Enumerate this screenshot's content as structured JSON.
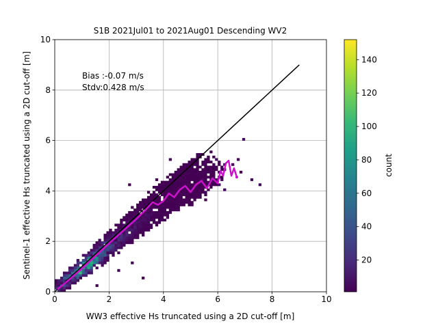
{
  "chart_data": [
    {
      "type": "heatmap",
      "title": "S1B 2021Jul01 to 2021Aug01 Descending WV2",
      "xlabel": "WW3 effective Hs truncated using a 2D cut-off [m]",
      "ylabel": "Sentinel-1 effective Hs truncated using a 2D cut-off [m]",
      "xlim": [
        0,
        10
      ],
      "ylim": [
        0,
        10
      ],
      "xticks": [
        "0",
        "2",
        "4",
        "6",
        "8",
        "10"
      ],
      "yticks": [
        "0",
        "2",
        "4",
        "6",
        "8",
        "10"
      ],
      "grid": true,
      "bin_width": 0.1,
      "annotations": [
        "Bias :-0.07 m/s",
        "Stdv:0.428 m/s"
      ],
      "density_ridge": [
        [
          0.1,
          0.1,
          30
        ],
        [
          0.3,
          0.3,
          50
        ],
        [
          0.5,
          0.5,
          70
        ],
        [
          0.7,
          0.65,
          90
        ],
        [
          0.9,
          0.8,
          115
        ],
        [
          1.1,
          1.0,
          140
        ],
        [
          1.3,
          1.15,
          120
        ],
        [
          1.5,
          1.35,
          90
        ],
        [
          1.7,
          1.55,
          65
        ],
        [
          1.9,
          1.75,
          45
        ],
        [
          2.1,
          1.9,
          35
        ],
        [
          2.3,
          2.1,
          28
        ],
        [
          2.5,
          2.3,
          22
        ],
        [
          2.7,
          2.45,
          18
        ],
        [
          2.9,
          2.65,
          14
        ],
        [
          3.1,
          2.85,
          11
        ],
        [
          3.3,
          3.0,
          8
        ],
        [
          3.5,
          3.15,
          6
        ],
        [
          3.7,
          3.35,
          4
        ],
        [
          3.9,
          3.5,
          3
        ],
        [
          4.1,
          3.7,
          2
        ],
        [
          4.3,
          3.85,
          2
        ],
        [
          4.5,
          4.0,
          1
        ],
        [
          4.7,
          4.15,
          1
        ],
        [
          4.9,
          4.3,
          1
        ],
        [
          5.1,
          4.45,
          1
        ],
        [
          5.3,
          4.6,
          1
        ],
        [
          5.5,
          4.75,
          1
        ]
      ],
      "sparse_bins": [
        [
          5.2,
          5.4
        ],
        [
          5.7,
          5.6
        ],
        [
          5.9,
          5.3
        ],
        [
          6.1,
          4.8
        ],
        [
          6.3,
          5.0
        ],
        [
          6.5,
          5.1
        ],
        [
          6.9,
          6.05
        ],
        [
          7.2,
          4.45
        ],
        [
          7.5,
          4.2
        ],
        [
          6.8,
          4.7
        ],
        [
          6.0,
          4.3
        ],
        [
          5.5,
          3.9
        ],
        [
          6.2,
          4.1
        ],
        [
          4.8,
          5.0
        ],
        [
          4.3,
          5.2
        ],
        [
          3.8,
          4.4
        ],
        [
          3.5,
          2.5
        ],
        [
          2.4,
          0.8
        ],
        [
          1.5,
          0.3
        ],
        [
          2.7,
          4.2
        ],
        [
          5.6,
          3.6
        ],
        [
          5.0,
          3.4
        ],
        [
          4.6,
          3.2
        ],
        [
          3.9,
          2.9
        ],
        [
          3.3,
          0.6
        ],
        [
          2.9,
          1.1
        ],
        [
          6.7,
          5.3
        ],
        [
          5.4,
          4.4
        ],
        [
          4.1,
          3.3
        ],
        [
          3.6,
          3.9
        ]
      ],
      "one_to_one_line": {
        "x": [
          0,
          9
        ],
        "y": [
          0,
          9
        ],
        "color": "#000000"
      },
      "binned_median": {
        "color": "#cc11cc",
        "points": [
          [
            0.1,
            0.1
          ],
          [
            0.5,
            0.45
          ],
          [
            1.0,
            0.92
          ],
          [
            1.5,
            1.42
          ],
          [
            2.0,
            1.92
          ],
          [
            2.5,
            2.4
          ],
          [
            3.0,
            2.88
          ],
          [
            3.3,
            3.2
          ],
          [
            3.6,
            3.55
          ],
          [
            3.8,
            3.45
          ],
          [
            4.0,
            3.6
          ],
          [
            4.2,
            3.9
          ],
          [
            4.4,
            3.75
          ],
          [
            4.6,
            4.05
          ],
          [
            4.8,
            4.2
          ],
          [
            5.0,
            3.95
          ],
          [
            5.2,
            4.25
          ],
          [
            5.4,
            4.4
          ],
          [
            5.6,
            4.1
          ],
          [
            5.8,
            4.5
          ],
          [
            6.0,
            4.3
          ],
          [
            6.1,
            4.8
          ],
          [
            6.2,
            4.6
          ],
          [
            6.3,
            5.1
          ],
          [
            6.4,
            5.2
          ],
          [
            6.5,
            4.6
          ],
          [
            6.6,
            4.9
          ],
          [
            6.7,
            4.55
          ]
        ]
      }
    },
    {
      "type": "heatmap",
      "ylabel": "count",
      "range": [
        1,
        152
      ],
      "ticks": [
        "20",
        "40",
        "60",
        "80",
        "100",
        "120",
        "140"
      ],
      "tick_values": [
        20,
        40,
        60,
        80,
        100,
        120,
        140
      ],
      "colormap": [
        "#440154",
        "#482878",
        "#3e4989",
        "#31688e",
        "#26828e",
        "#1f9e89",
        "#35b779",
        "#6ece58",
        "#b5de2b",
        "#fde725"
      ]
    }
  ]
}
